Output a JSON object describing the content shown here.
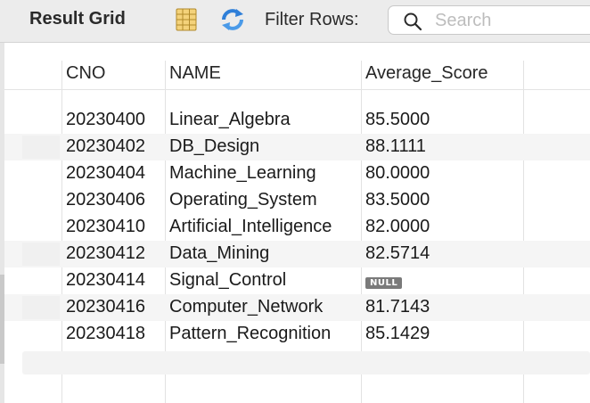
{
  "toolbar": {
    "title": "Result Grid",
    "filter_label": "Filter Rows:",
    "search_placeholder": "Search"
  },
  "columns": [
    "CNO",
    "NAME",
    "Average_Score"
  ],
  "rows": [
    {
      "cno": "20230400",
      "name": "Linear_Algebra",
      "score": "85.5000"
    },
    {
      "cno": "20230402",
      "name": "DB_Design",
      "score": "88.1111"
    },
    {
      "cno": "20230404",
      "name": "Machine_Learning",
      "score": "80.0000"
    },
    {
      "cno": "20230406",
      "name": "Operating_System",
      "score": "83.5000"
    },
    {
      "cno": "20230410",
      "name": "Artificial_Intelligence",
      "score": "82.0000"
    },
    {
      "cno": "20230412",
      "name": "Data_Mining",
      "score": "82.5714"
    },
    {
      "cno": "20230414",
      "name": "Signal_Control",
      "score": "NULL"
    },
    {
      "cno": "20230416",
      "name": "Computer_Network",
      "score": "81.7143"
    },
    {
      "cno": "20230418",
      "name": "Pattern_Recognition",
      "score": "85.1429"
    }
  ],
  "icons": {
    "grid": "grid-view-icon",
    "refresh": "refresh-icon",
    "search": "search-icon"
  },
  "colors": {
    "null_badge": "#7a7a7a",
    "refresh_blue": "#2f7fd8",
    "grid_icon_fill": "#f4d27a"
  }
}
